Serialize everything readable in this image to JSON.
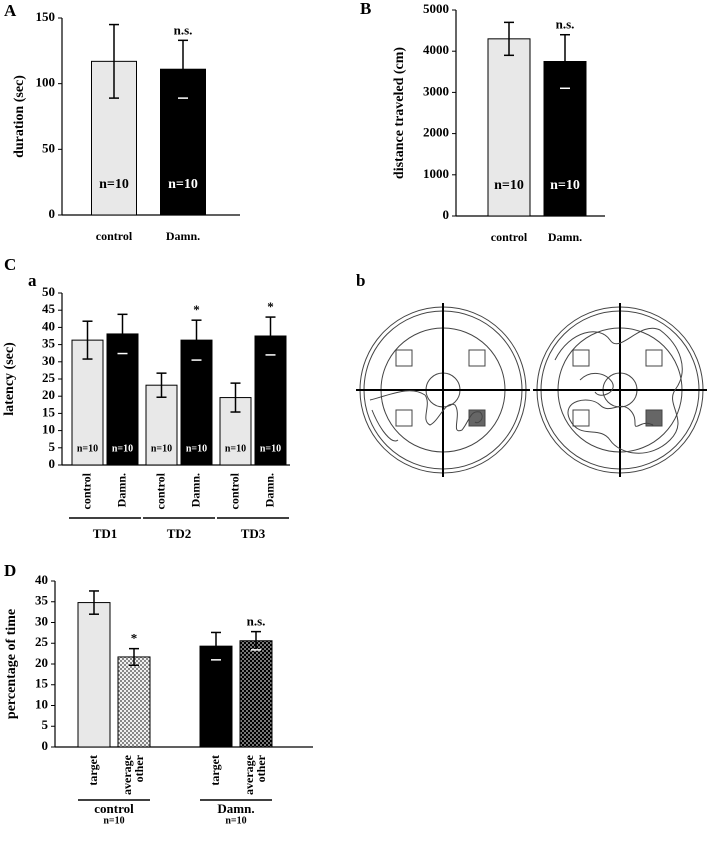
{
  "chart_data": [
    {
      "type": "bar",
      "panel": "A",
      "ylabel": "duration (sec)",
      "categories": [
        "control",
        "Damn."
      ],
      "ylim": [
        0,
        150
      ],
      "yticks": [
        0,
        50,
        100,
        150
      ],
      "series": [
        {
          "values": [
            117,
            111
          ],
          "errors": [
            28,
            22
          ],
          "colors": [
            "#e8e8e8",
            "#000000"
          ],
          "bar_labels": [
            "n=10",
            "n=10"
          ],
          "annotations": [
            null,
            "n.s."
          ]
        }
      ]
    },
    {
      "type": "bar",
      "panel": "B",
      "ylabel": "distance traveled (cm)",
      "categories": [
        "control",
        "Damn."
      ],
      "ylim": [
        0,
        5000
      ],
      "yticks": [
        0,
        1000,
        2000,
        3000,
        4000,
        5000
      ],
      "series": [
        {
          "values": [
            4300,
            3750
          ],
          "errors": [
            400,
            650
          ],
          "colors": [
            "#e8e8e8",
            "#000000"
          ],
          "bar_labels": [
            "n=10",
            "n=10"
          ],
          "annotations": [
            null,
            "n.s."
          ]
        }
      ]
    },
    {
      "type": "bar",
      "section": "C",
      "panel": "a",
      "ylabel": "latency (sec)",
      "categories": [
        "TD1",
        "TD2",
        "TD3"
      ],
      "ylim": [
        0,
        50
      ],
      "yticks": [
        0,
        5,
        10,
        15,
        20,
        25,
        30,
        35,
        40,
        45,
        50
      ],
      "series": [
        {
          "name": "control",
          "values": [
            36.3,
            23.2,
            19.6
          ],
          "errors": [
            5.5,
            3.5,
            4.2
          ],
          "colors": [
            "#e8e8e8",
            "#e8e8e8",
            "#e8e8e8"
          ],
          "bar_labels": [
            "n=10",
            "n=10",
            "n=10"
          ],
          "annotations": [
            null,
            null,
            null
          ]
        },
        {
          "name": "Damn.",
          "values": [
            38.1,
            36.3,
            37.5
          ],
          "errors": [
            5.7,
            5.8,
            5.5
          ],
          "colors": [
            "#000000",
            "#000000",
            "#000000"
          ],
          "bar_labels": [
            "n=10",
            "n=10",
            "n=10"
          ],
          "annotations": [
            null,
            "*",
            "*"
          ]
        }
      ]
    },
    {
      "type": "bar",
      "panel": "D",
      "ylabel": "percentage of time",
      "categories": [
        "control",
        "Damn."
      ],
      "group_notes": [
        "n=10",
        "n=10"
      ],
      "ylim": [
        0,
        40
      ],
      "yticks": [
        0,
        5,
        10,
        15,
        20,
        25,
        30,
        35,
        40
      ],
      "series": [
        {
          "name": "target",
          "values": [
            34.8,
            24.3
          ],
          "errors": [
            2.8,
            3.3
          ],
          "colors": [
            "#e8e8e8",
            "#000000"
          ],
          "annotations": [
            null,
            null
          ]
        },
        {
          "name": "average other",
          "values": [
            21.7,
            25.6
          ],
          "errors": [
            2.0,
            2.2
          ],
          "colors": [
            "#e8e8e8",
            "#000000"
          ],
          "pattern": "checker",
          "annotations": [
            "*",
            "n.s."
          ]
        }
      ]
    }
  ],
  "maze_panel": {
    "label": "b"
  }
}
